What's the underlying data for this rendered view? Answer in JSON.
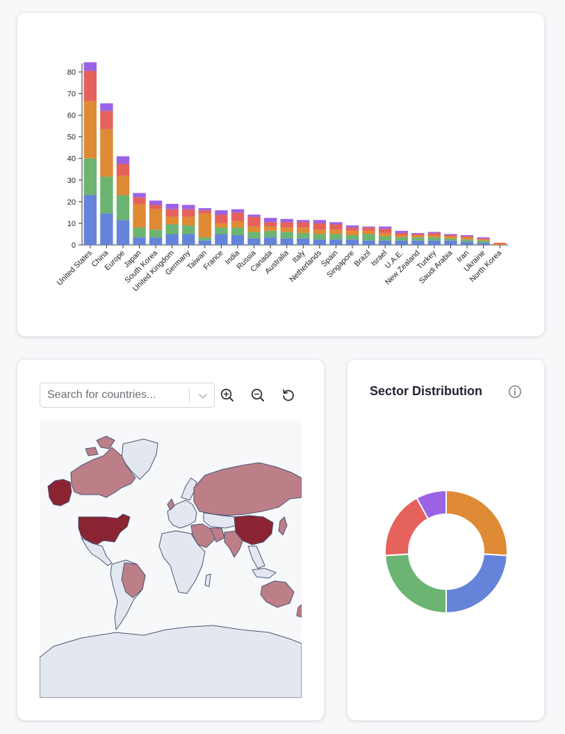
{
  "bar_panel": {
    "chart_data": {
      "type": "bar",
      "stacked": true,
      "title": "",
      "xlabel": "",
      "ylabel": "",
      "ylim": [
        0,
        84
      ],
      "y_ticks": [
        0,
        10,
        20,
        30,
        40,
        50,
        60,
        70,
        80
      ],
      "grid": false,
      "legend": "none",
      "categories": [
        "United States",
        "China",
        "Europe",
        "Japan",
        "South Korea",
        "United Kingdom",
        "Germany",
        "Taiwan",
        "France",
        "India",
        "Russia",
        "Canada",
        "Australia",
        "Italy",
        "Netherlands",
        "Spain",
        "Singapore",
        "Brazil",
        "Israel",
        "U.A.E.",
        "New Zealand",
        "Turkey",
        "Saudi Arabia",
        "Iran",
        "Ukraine",
        "North Korea"
      ],
      "series": [
        {
          "color": "#6583d9",
          "values": [
            23,
            14.5,
            11.5,
            3.5,
            3.5,
            5,
            5,
            2,
            5,
            4.5,
            3,
            3.5,
            3,
            3,
            2.5,
            2.5,
            2.5,
            2,
            2,
            2,
            2,
            2,
            2,
            1.5,
            1,
            0
          ]
        },
        {
          "color": "#6cb471",
          "values": [
            17,
            17,
            11.5,
            4.5,
            3.5,
            4.5,
            4,
            1.5,
            3,
            3.5,
            3,
            3,
            3,
            2.5,
            2.5,
            2.5,
            2,
            3,
            2,
            1.5,
            1.5,
            1.5,
            1,
            1,
            1,
            0
          ]
        },
        {
          "color": "#df8a35",
          "values": [
            26.5,
            22,
            9,
            11,
            9.5,
            3.5,
            4,
            11,
            2,
            3,
            2.5,
            2,
            2,
            2.5,
            2,
            2,
            2,
            1.5,
            1.5,
            1,
            1,
            1,
            1,
            1,
            0.5,
            0.5
          ]
        },
        {
          "color": "#e4625b",
          "values": [
            14,
            8.5,
            5.5,
            3,
            2,
            3.5,
            3.5,
            1.5,
            4,
            4,
            4.5,
            2,
            2.5,
            2.5,
            3,
            2.5,
            1.5,
            1.5,
            2,
            1,
            0.5,
            1,
            0.5,
            0.5,
            0.5,
            0.5
          ]
        },
        {
          "color": "#9b62e6",
          "values": [
            4,
            3.5,
            3.5,
            2,
            2,
            2.5,
            2,
            1,
            2,
            1.5,
            1,
            2,
            1.5,
            1,
            1.5,
            1,
            1,
            0.5,
            1,
            1,
            0.5,
            0.5,
            0.5,
            0.5,
            0.5,
            0
          ]
        }
      ]
    }
  },
  "map_panel": {
    "search": {
      "placeholder": "Search for countries..."
    },
    "toolbar": {
      "zoom_in_icon": "zoom-in-icon",
      "zoom_out_icon": "zoom-out-icon",
      "reset_icon": "reset-icon"
    },
    "colors": {
      "ocean": "#f7f8fa",
      "no_data": "#e3e7ef",
      "medium": "#bc7f88",
      "high": "#8a2432",
      "border": "#4b5375"
    },
    "highlighted_high": [
      "United States",
      "China",
      "Alaska"
    ]
  },
  "donut_panel": {
    "title": "Sector Distribution",
    "info_icon": "info-icon",
    "chart_data": {
      "type": "pie",
      "donut": true,
      "legend": "none",
      "slices": [
        {
          "value": 26,
          "color": "#df8a35"
        },
        {
          "value": 24,
          "color": "#6583d9"
        },
        {
          "value": 24,
          "color": "#6cb471"
        },
        {
          "value": 18,
          "color": "#e4625b"
        },
        {
          "value": 8,
          "color": "#9b62e6"
        }
      ]
    }
  }
}
